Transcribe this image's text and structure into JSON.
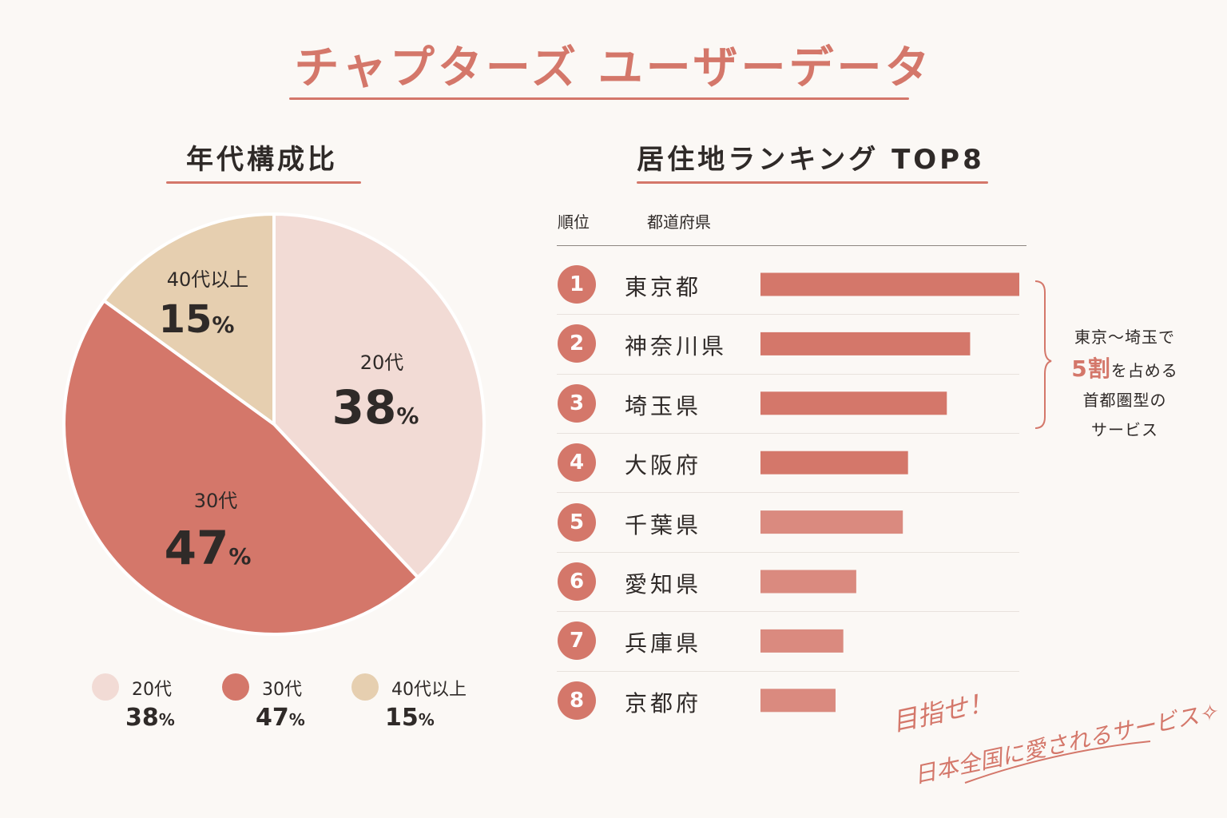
{
  "title": "チャプターズ ユーザーデータ",
  "age_section": {
    "title": "年代構成比"
  },
  "rank_section": {
    "title": "居住地ランキング TOP8",
    "col_rank": "順位",
    "col_pref": "都道府県"
  },
  "note": {
    "line1": "東京〜埼玉で",
    "strong": "5割",
    "line2_rest": "を占める",
    "line3": "首都圏型の",
    "line4": "サービス"
  },
  "handwritten": {
    "line1": "目指せ！",
    "line2": "日本全国に愛されるサービス✧"
  },
  "colors": {
    "accent": "#d4776a",
    "pie_20s": "#f2dbd5",
    "pie_30s": "#d4776a",
    "pie_40s": "#e6cfb0",
    "bar": "#d4776a"
  },
  "chart_data": [
    {
      "type": "pie",
      "title": "年代構成比",
      "slices": [
        {
          "label": "20代",
          "value": 38,
          "display": "38",
          "unit": "%"
        },
        {
          "label": "30代",
          "value": 47,
          "display": "47",
          "unit": "%"
        },
        {
          "label": "40代以上",
          "value": 15,
          "display": "15",
          "unit": "%"
        }
      ],
      "legend_placement": "bottom"
    },
    {
      "type": "bar",
      "orientation": "horizontal",
      "title": "居住地ランキング TOP8",
      "categories": [
        "東京都",
        "神奈川県",
        "埼玉県",
        "大阪府",
        "千葉県",
        "愛知県",
        "兵庫県",
        "京都府"
      ],
      "ranks": [
        "1",
        "2",
        "3",
        "4",
        "5",
        "6",
        "7",
        "8"
      ],
      "values": [
        100,
        81,
        72,
        57,
        55,
        37,
        32,
        29
      ],
      "xlim": [
        0,
        100
      ],
      "grid": false
    }
  ]
}
